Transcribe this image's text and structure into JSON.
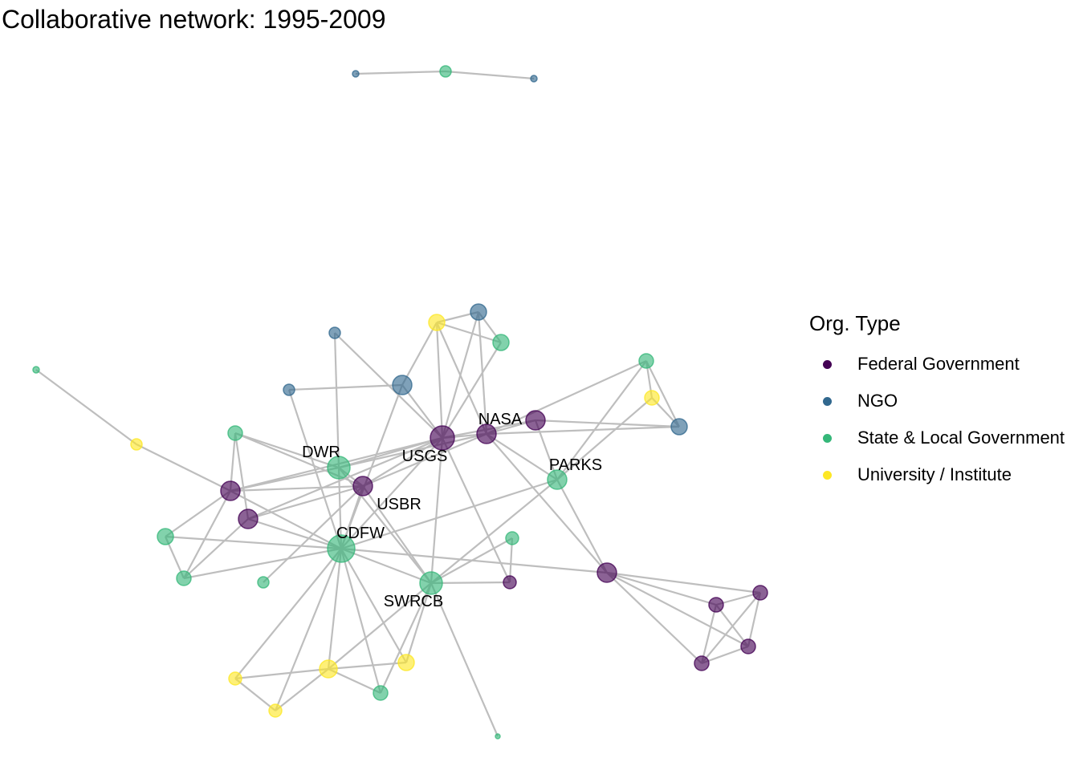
{
  "title": "Collaborative network: 1995-2009",
  "legend": {
    "title": "Org. Type",
    "items": [
      {
        "label": "Federal Government",
        "color": "#440154"
      },
      {
        "label": "NGO",
        "color": "#31688E"
      },
      {
        "label": "State & Local Government",
        "color": "#35B779"
      },
      {
        "label": "University / Institute",
        "color": "#FDE725"
      }
    ]
  },
  "labels": {
    "dwr": "DWR",
    "usgs": "USGS",
    "nasa": "NASA",
    "usbr": "USBR",
    "parks": "PARKS",
    "cdfw": "CDFW",
    "swrcb": "SWRCB"
  },
  "style": {
    "edge_color": "#bebebe",
    "node_opacity": 0.62
  }
}
